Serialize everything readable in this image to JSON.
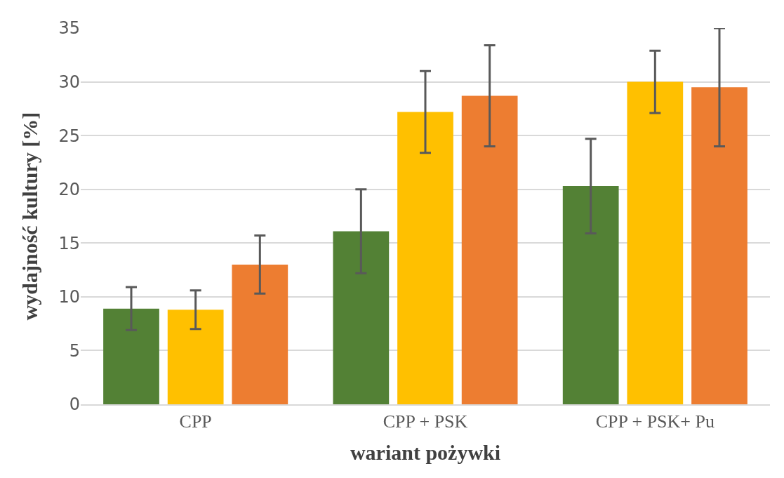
{
  "chart_data": {
    "type": "bar",
    "xlabel": "wariant pożywki",
    "ylabel": "wydajność kultury [%]",
    "categories": [
      "CPP",
      "CPP + PSK",
      "CPP + PSK+ Pu"
    ],
    "series": [
      {
        "color": "#538135",
        "values": [
          8.9,
          16.1,
          20.3
        ],
        "errors": [
          2.0,
          3.9,
          4.4
        ]
      },
      {
        "color": "#ffc000",
        "values": [
          8.8,
          27.2,
          30.0
        ],
        "errors": [
          1.8,
          3.8,
          2.9
        ]
      },
      {
        "color": "#ed7d31",
        "values": [
          13.0,
          28.7,
          29.5
        ],
        "errors": [
          2.7,
          4.7,
          5.5
        ]
      }
    ],
    "ylim": [
      0,
      35
    ],
    "yticks": [
      0,
      5,
      10,
      15,
      20,
      25,
      30,
      35
    ],
    "grid": "y"
  }
}
